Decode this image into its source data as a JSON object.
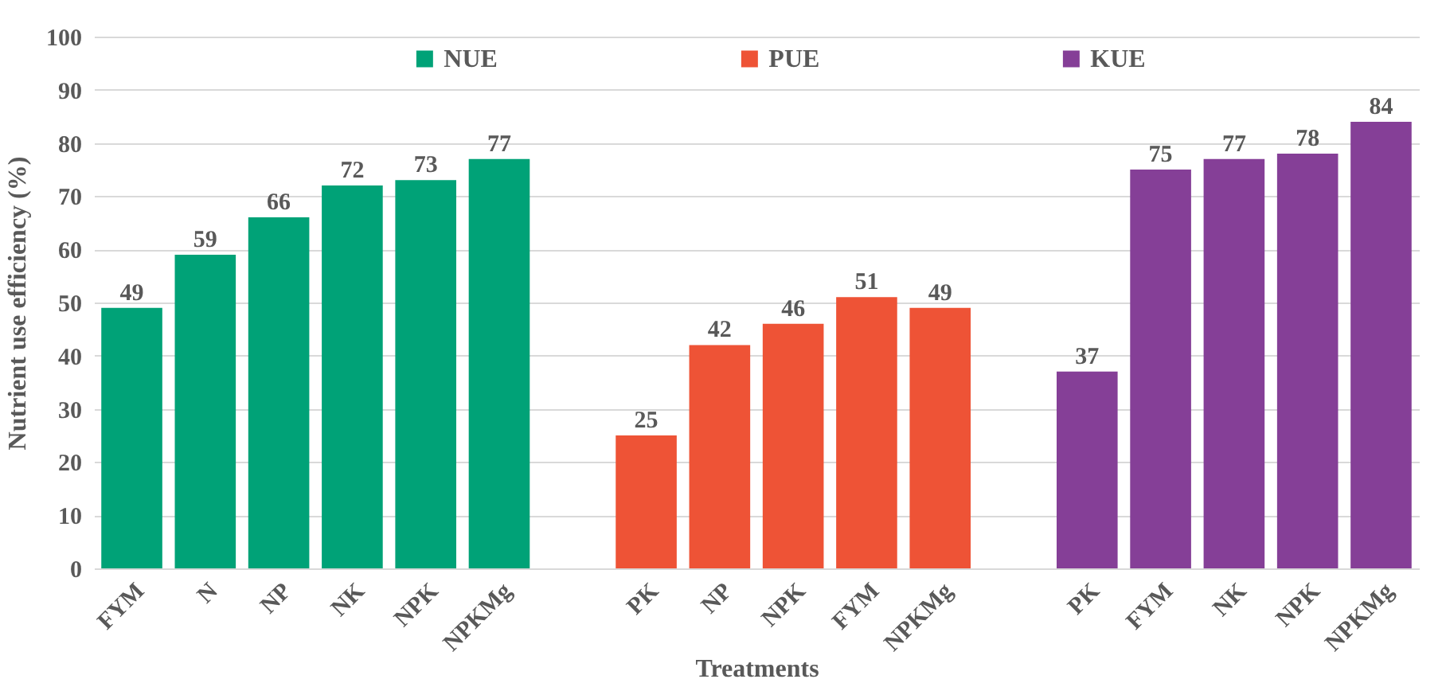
{
  "chart_data": {
    "type": "bar",
    "xlabel": "Treatments",
    "ylabel": "Nutrient use efficiency (%)",
    "categories": [
      "FYM",
      "N",
      "NP",
      "NK",
      "NPK",
      "NPKMg",
      null,
      "PK",
      "NP",
      "NPK",
      "FYM",
      "NPKMg",
      null,
      "PK",
      "FYM",
      "NK",
      "NPK",
      "NPKMg"
    ],
    "series": [
      {
        "name": "NUE",
        "color": "#00a277",
        "values": [
          49,
          59,
          66,
          72,
          73,
          77,
          null,
          null,
          null,
          null,
          null,
          null,
          null,
          null,
          null,
          null,
          null,
          null
        ]
      },
      {
        "name": "PUE",
        "color": "#ee5336",
        "values": [
          null,
          null,
          null,
          null,
          null,
          null,
          null,
          25,
          42,
          46,
          51,
          49,
          null,
          null,
          null,
          null,
          null,
          null
        ]
      },
      {
        "name": "KUE",
        "color": "#853f97",
        "values": [
          null,
          null,
          null,
          null,
          null,
          null,
          null,
          null,
          null,
          null,
          null,
          null,
          null,
          37,
          75,
          77,
          78,
          84
        ]
      }
    ],
    "ylim": [
      0,
      100
    ],
    "yticks": [
      0,
      10,
      20,
      30,
      40,
      50,
      60,
      70,
      80,
      90,
      100
    ],
    "grid": "y",
    "legend": "top",
    "data_labels": true
  }
}
